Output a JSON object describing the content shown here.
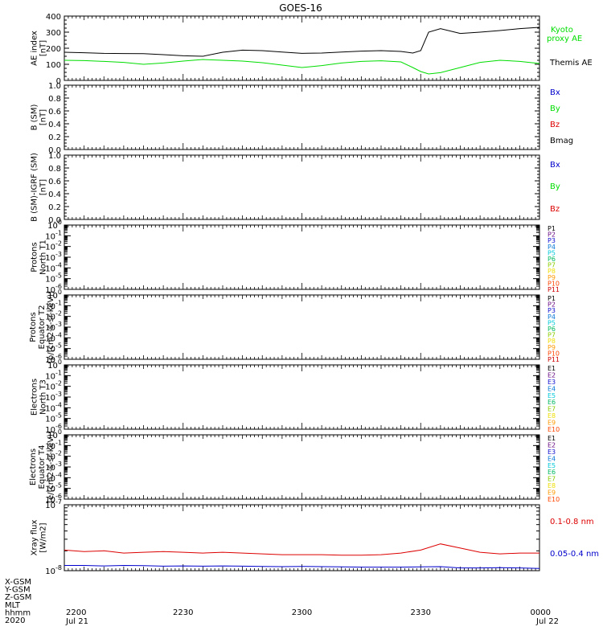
{
  "title": "GOES-16",
  "colors": {
    "black": "#000000",
    "green": "#00dd00",
    "blue": "#0000cc",
    "red": "#dd0000",
    "spectrum": [
      "#000000",
      "#6a0d83",
      "#1010d0",
      "#0a78d8",
      "#00c8d8",
      "#00b860",
      "#88cc00",
      "#eedd00",
      "#ff9900",
      "#ff4400",
      "#d00000"
    ]
  },
  "time_axis": {
    "ticks": [
      "2200",
      "2230",
      "2300",
      "2330",
      "0000"
    ],
    "dates": {
      "start": "Jul 21",
      "end": "Jul 22"
    },
    "row_labels": [
      "X-GSM",
      "Y-GSM",
      "Z-GSM",
      "MLT",
      "hhmm",
      "2020"
    ]
  },
  "panels": {
    "ae": {
      "ylabel": [
        "AE index",
        "[nT]"
      ],
      "ticks": [
        "0",
        "100",
        "200",
        "300",
        "400"
      ],
      "legend": [
        {
          "text": "Kyoto",
          "color": "green"
        },
        {
          "text": "proxy AE",
          "color": "green"
        },
        {
          "text": "Themis AE",
          "color": "black"
        }
      ]
    },
    "bsm": {
      "ylabel": [
        "B (SM)",
        "[nT]"
      ],
      "ticks": [
        "0.0",
        "0.2",
        "0.4",
        "0.6",
        "0.8",
        "1.0"
      ],
      "legend": [
        {
          "text": "Bx",
          "color": "blue"
        },
        {
          "text": "By",
          "color": "green"
        },
        {
          "text": "Bz",
          "color": "red"
        },
        {
          "text": "Bmag",
          "color": "black"
        }
      ]
    },
    "bigrf": {
      "ylabel": [
        "B (SM)-IGRF (SM)",
        "[nT]"
      ],
      "ticks": [
        "0.0",
        "0.2",
        "0.4",
        "0.6",
        "0.8",
        "1.0"
      ],
      "legend": [
        {
          "text": "Bx",
          "color": "blue"
        },
        {
          "text": "By",
          "color": "green"
        },
        {
          "text": "Bz",
          "color": "red"
        }
      ]
    },
    "p_north": {
      "ylabel": [
        "Protons",
        "North T1"
      ],
      "legend": [
        "P1",
        "P2",
        "P3",
        "P4",
        "P5",
        "P6",
        "P7",
        "P8",
        "P9",
        "P10",
        "P11"
      ]
    },
    "p_equator": {
      "ylabel": [
        "Protons",
        "Equator T2",
        "[p/(cm2-s-sr-keV)]"
      ],
      "legend": [
        "P1",
        "P2",
        "P3",
        "P4",
        "P5",
        "P6",
        "P7",
        "P8",
        "P9",
        "P10",
        "P11"
      ]
    },
    "e_north": {
      "ylabel": [
        "Electrons",
        "North T3"
      ],
      "legend": [
        "E1",
        "E2",
        "E3",
        "E4",
        "E5",
        "E6",
        "E7",
        "E8",
        "E9",
        "E10"
      ]
    },
    "e_equator": {
      "ylabel": [
        "Electrons",
        "Equator T4",
        "[e/(cm2-s-sr-keV)]"
      ],
      "legend": [
        "E1",
        "E2",
        "E3",
        "E4",
        "E5",
        "E6",
        "E7",
        "E8",
        "E9",
        "E10"
      ]
    },
    "xray": {
      "ylabel": [
        "Xray flux",
        "[W/m2]"
      ],
      "legend": [
        {
          "text": "0.1-0.8 nm",
          "color": "red"
        },
        {
          "text": "0.05-0.4 nm",
          "color": "blue"
        }
      ]
    },
    "log_ticks": [
      {
        "base": "10",
        "exp": "0"
      },
      {
        "base": "10",
        "exp": "-1"
      },
      {
        "base": "10",
        "exp": "-2"
      },
      {
        "base": "10",
        "exp": "-3"
      },
      {
        "base": "10",
        "exp": "-4"
      },
      {
        "base": "10",
        "exp": "-5"
      },
      {
        "base": "10",
        "exp": "-6"
      }
    ],
    "xray_ticks": [
      {
        "base": "10",
        "exp": "-7"
      },
      {
        "base": "10",
        "exp": "-8"
      }
    ]
  },
  "chart_data": [
    {
      "type": "line",
      "panel": "ae",
      "x_unit": "hhmm",
      "ylim": [
        0,
        400
      ],
      "x": [
        "2200",
        "2205",
        "2210",
        "2215",
        "2220",
        "2225",
        "2230",
        "2235",
        "2240",
        "2245",
        "2250",
        "2255",
        "2300",
        "2305",
        "2310",
        "2315",
        "2320",
        "2325",
        "2328",
        "2330",
        "2332",
        "2335",
        "2340",
        "2345",
        "2350",
        "2355",
        "2400"
      ],
      "series": [
        {
          "name": "Themis AE",
          "color": "black",
          "values": [
            175,
            172,
            168,
            167,
            166,
            160,
            153,
            150,
            175,
            188,
            185,
            176,
            168,
            170,
            176,
            182,
            185,
            180,
            170,
            185,
            300,
            322,
            292,
            300,
            310,
            322,
            330
          ]
        },
        {
          "name": "Kyoto proxy AE",
          "color": "green",
          "values": [
            125,
            123,
            118,
            112,
            100,
            108,
            120,
            130,
            125,
            120,
            110,
            95,
            80,
            92,
            108,
            118,
            122,
            115,
            80,
            55,
            40,
            48,
            80,
            112,
            125,
            118,
            105
          ]
        }
      ]
    },
    {
      "type": "line",
      "panel": "xray",
      "x_unit": "hhmm",
      "yscale": "log",
      "ylim": [
        1e-08,
        1e-07
      ],
      "x": [
        "2200",
        "2205",
        "2210",
        "2215",
        "2220",
        "2225",
        "2230",
        "2235",
        "2240",
        "2245",
        "2250",
        "2255",
        "2300",
        "2305",
        "2310",
        "2315",
        "2320",
        "2325",
        "2330",
        "2335",
        "2340",
        "2345",
        "2350",
        "2355",
        "2400"
      ],
      "series": [
        {
          "name": "0.1-0.8 nm",
          "color": "red",
          "values": [
            2.05e-08,
            1.95e-08,
            2e-08,
            1.85e-08,
            1.9e-08,
            1.95e-08,
            1.9e-08,
            1.85e-08,
            1.9e-08,
            1.85e-08,
            1.8e-08,
            1.75e-08,
            1.75e-08,
            1.75e-08,
            1.72e-08,
            1.72e-08,
            1.75e-08,
            1.85e-08,
            2.05e-08,
            2.55e-08,
            2.2e-08,
            1.9e-08,
            1.8e-08,
            1.85e-08,
            1.85e-08
          ]
        },
        {
          "name": "0.05-0.4 nm",
          "color": "blue",
          "values": [
            1.2e-08,
            1.2e-08,
            1.18e-08,
            1.2e-08,
            1.19e-08,
            1.17e-08,
            1.18e-08,
            1.17e-08,
            1.18e-08,
            1.17e-08,
            1.16e-08,
            1.15e-08,
            1.16e-08,
            1.15e-08,
            1.14e-08,
            1.13e-08,
            1.13e-08,
            1.13e-08,
            1.14e-08,
            1.15e-08,
            1.1e-08,
            1.1e-08,
            1.11e-08,
            1.1e-08,
            1.08e-08
          ]
        }
      ]
    }
  ]
}
